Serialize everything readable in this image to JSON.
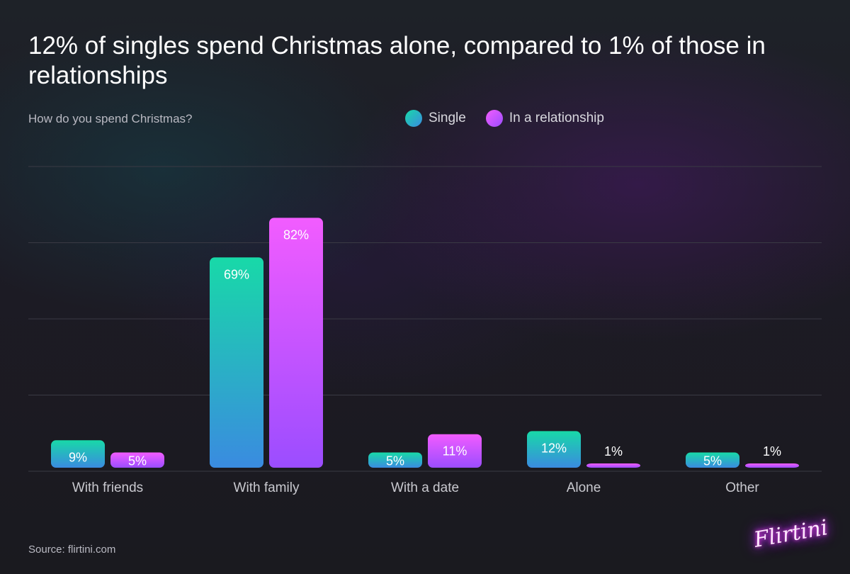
{
  "header": {
    "title": "12% of singles spend Christmas alone, compared to 1% of those in relationships",
    "subtitle": "How do you spend Christmas?"
  },
  "legend": {
    "single": "Single",
    "relationship": "In a relationship"
  },
  "footer": {
    "source": "Source: flirtini.com",
    "logo_text": "Flirtini"
  },
  "colors": {
    "single_top": "#18d9a8",
    "single_bottom": "#3a8be0",
    "relationship_top": "#f25cff",
    "relationship_bottom": "#9b4dff",
    "grid": "#3a3a44",
    "tick_label": "#c9c9cf"
  },
  "chart_data": {
    "type": "bar",
    "title": "12% of singles spend Christmas alone, compared to 1% of those in relationships",
    "subtitle": "How do you spend Christmas?",
    "xlabel": "",
    "ylabel": "",
    "categories": [
      "With friends",
      "With family",
      "With a date",
      "Alone",
      "Other"
    ],
    "series": [
      {
        "name": "Single",
        "values": [
          9,
          69,
          5,
          12,
          5
        ],
        "labels": [
          "9%",
          "69%",
          "5%",
          "12%",
          "5%"
        ]
      },
      {
        "name": "In a relationship",
        "values": [
          5,
          82,
          11,
          1,
          1
        ],
        "labels": [
          "5%",
          "82%",
          "11%",
          "1%",
          "1%"
        ]
      }
    ],
    "ylim": [
      0,
      100
    ],
    "grid": true,
    "legend_position": "top-center"
  }
}
